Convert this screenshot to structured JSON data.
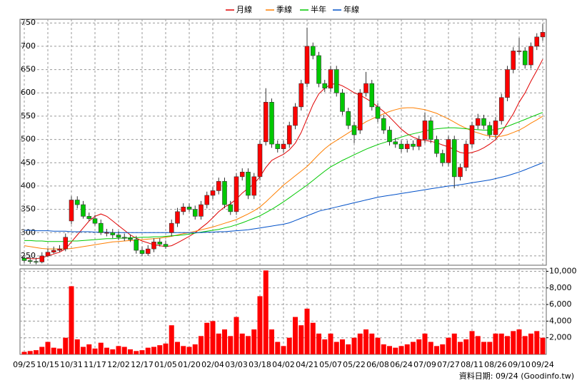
{
  "chart_data": {
    "type": "candlestick",
    "footer": "資料日期: 09/24 (Goodinfo.tw)",
    "grid": true,
    "categories": [
      "09/25",
      null,
      null,
      null,
      "10/15",
      null,
      null,
      null,
      "10/31",
      null,
      null,
      null,
      "11/17",
      null,
      null,
      null,
      "12/02",
      null,
      null,
      null,
      "12/17",
      null,
      null,
      null,
      "01/05",
      null,
      null,
      null,
      "01/20",
      null,
      null,
      null,
      "02/04",
      null,
      null,
      null,
      "03/03",
      null,
      null,
      null,
      "03/18",
      null,
      null,
      null,
      "04/02",
      null,
      null,
      null,
      "04/21",
      null,
      null,
      null,
      "05/07",
      null,
      null,
      null,
      "05/22",
      null,
      null,
      null,
      "06/08",
      null,
      null,
      null,
      "06/24",
      null,
      null,
      null,
      "07/09",
      null,
      null,
      null,
      "07/27",
      null,
      null,
      null,
      "08/11",
      null,
      null,
      null,
      "08/26",
      null,
      null,
      null,
      "09/10",
      null,
      null,
      null,
      "09/24"
    ],
    "open": [
      245,
      240,
      238,
      237,
      250,
      258,
      262,
      265,
      325,
      370,
      360,
      335,
      330,
      320,
      300,
      300,
      295,
      290,
      288,
      285,
      262,
      255,
      265,
      280,
      275,
      300,
      320,
      345,
      355,
      350,
      335,
      360,
      380,
      390,
      410,
      360,
      345,
      420,
      430,
      380,
      420,
      495,
      580,
      490,
      480,
      490,
      530,
      570,
      620,
      700,
      680,
      620,
      610,
      650,
      600,
      560,
      530,
      520,
      600,
      620,
      570,
      545,
      520,
      495,
      490,
      480,
      490,
      485,
      500,
      540,
      500,
      470,
      450,
      500,
      420,
      440,
      490,
      530,
      545,
      530,
      510,
      540,
      590,
      650,
      690,
      690,
      660,
      700,
      720
    ],
    "high": [
      253,
      248,
      246,
      258,
      266,
      270,
      273,
      298,
      378,
      378,
      368,
      343,
      338,
      328,
      308,
      308,
      303,
      298,
      296,
      293,
      270,
      273,
      288,
      288,
      283,
      328,
      353,
      363,
      363,
      358,
      368,
      388,
      398,
      418,
      418,
      368,
      428,
      438,
      438,
      428,
      498,
      610,
      588,
      498,
      498,
      538,
      578,
      628,
      740,
      708,
      688,
      628,
      658,
      658,
      608,
      568,
      538,
      608,
      645,
      628,
      578,
      553,
      528,
      503,
      498,
      498,
      498,
      508,
      558,
      548,
      508,
      478,
      508,
      508,
      448,
      498,
      538,
      555,
      553,
      538,
      548,
      598,
      658,
      698,
      718,
      698,
      708,
      728,
      748
    ],
    "low": [
      235,
      233,
      232,
      234,
      247,
      255,
      258,
      260,
      318,
      352,
      330,
      325,
      315,
      295,
      292,
      288,
      284,
      282,
      280,
      255,
      250,
      250,
      258,
      270,
      265,
      292,
      312,
      338,
      345,
      328,
      328,
      352,
      372,
      382,
      352,
      338,
      338,
      412,
      372,
      372,
      412,
      487,
      482,
      472,
      472,
      482,
      522,
      562,
      612,
      672,
      612,
      602,
      602,
      592,
      552,
      522,
      492,
      512,
      592,
      562,
      537,
      512,
      487,
      482,
      472,
      472,
      477,
      477,
      492,
      492,
      462,
      442,
      442,
      395,
      412,
      432,
      482,
      522,
      522,
      502,
      502,
      532,
      582,
      642,
      682,
      652,
      652,
      692,
      712
    ],
    "close": [
      240,
      238,
      237,
      250,
      258,
      262,
      265,
      290,
      370,
      360,
      335,
      330,
      320,
      300,
      300,
      295,
      290,
      288,
      285,
      262,
      255,
      265,
      280,
      275,
      270,
      320,
      345,
      355,
      350,
      335,
      360,
      380,
      390,
      410,
      360,
      345,
      420,
      430,
      380,
      420,
      490,
      580,
      490,
      480,
      490,
      530,
      570,
      620,
      700,
      680,
      620,
      610,
      650,
      600,
      560,
      530,
      510,
      600,
      620,
      570,
      545,
      520,
      495,
      490,
      480,
      490,
      485,
      500,
      540,
      500,
      470,
      450,
      500,
      420,
      440,
      490,
      530,
      545,
      530,
      510,
      540,
      590,
      650,
      690,
      690,
      660,
      700,
      720,
      730
    ],
    "up_color": "#ff0000",
    "down_color": "#00c800",
    "ylim": [
      230,
      758
    ],
    "yticks": [
      250,
      300,
      350,
      400,
      450,
      500,
      550,
      600,
      650,
      700,
      750
    ],
    "series": [
      {
        "name": "月線",
        "color": "#e00000",
        "values": [
          245,
          244,
          244,
          246,
          250,
          254,
          258,
          265,
          280,
          295,
          310,
          325,
          335,
          340,
          335,
          325,
          315,
          305,
          295,
          288,
          282,
          278,
          274,
          272,
          270,
          272,
          278,
          285,
          292,
          300,
          310,
          320,
          332,
          345,
          355,
          362,
          372,
          385,
          395,
          405,
          420,
          440,
          455,
          462,
          468,
          478,
          492,
          515,
          545,
          575,
          598,
          610,
          618,
          620,
          615,
          608,
          600,
          595,
          588,
          580,
          570,
          560,
          548,
          535,
          522,
          512,
          505,
          500,
          498,
          496,
          493,
          488,
          484,
          478,
          472,
          470,
          472,
          476,
          482,
          490,
          500,
          515,
          535,
          555,
          580,
          600,
          625,
          648,
          672
        ]
      },
      {
        "name": "季線",
        "color": "#ff7f00",
        "values": [
          272,
          270,
          268,
          266,
          265,
          265,
          265,
          265,
          266,
          268,
          270,
          272,
          274,
          276,
          278,
          280,
          281,
          282,
          283,
          284,
          285,
          286,
          287,
          288,
          290,
          292,
          295,
          298,
          300,
          303,
          306,
          309,
          312,
          316,
          320,
          324,
          328,
          334,
          340,
          347,
          355,
          366,
          378,
          390,
          402,
          412,
          422,
          432,
          442,
          455,
          468,
          480,
          490,
          498,
          506,
          514,
          522,
          530,
          538,
          544,
          550,
          555,
          560,
          564,
          567,
          568,
          568,
          566,
          564,
          560,
          556,
          550,
          544,
          537,
          530,
          524,
          518,
          514,
          510,
          507,
          506,
          507,
          510,
          515,
          520,
          527,
          535,
          542,
          550
        ]
      },
      {
        "name": "半年",
        "color": "#00c800",
        "values": [
          283,
          283,
          282,
          282,
          281,
          281,
          281,
          281,
          282,
          282,
          283,
          284,
          285,
          286,
          287,
          287,
          288,
          288,
          289,
          289,
          290,
          290,
          291,
          291,
          292,
          293,
          294,
          295,
          297,
          299,
          301,
          303,
          305,
          307,
          310,
          313,
          317,
          321,
          326,
          331,
          336,
          343,
          350,
          358,
          366,
          375,
          384,
          393,
          402,
          412,
          422,
          432,
          441,
          448,
          455,
          461,
          467,
          473,
          479,
          484,
          489,
          493,
          497,
          501,
          505,
          509,
          512,
          515,
          518,
          521,
          523,
          524,
          525,
          525,
          524,
          523,
          522,
          521,
          520,
          520,
          521,
          524,
          528,
          533,
          538,
          543,
          548,
          553,
          558
        ]
      },
      {
        "name": "年線",
        "color": "#0050c8",
        "values": [
          305,
          305,
          304,
          304,
          304,
          303,
          303,
          303,
          302,
          302,
          302,
          302,
          301,
          301,
          301,
          300,
          300,
          300,
          300,
          300,
          300,
          300,
          300,
          300,
          300,
          300,
          300,
          300,
          300,
          300,
          300,
          301,
          301,
          302,
          302,
          303,
          304,
          305,
          306,
          308,
          310,
          312,
          314,
          316,
          318,
          321,
          326,
          331,
          336,
          341,
          346,
          349,
          352,
          355,
          358,
          361,
          364,
          367,
          370,
          373,
          376,
          378,
          380,
          382,
          384,
          386,
          388,
          390,
          392,
          394,
          396,
          398,
          400,
          401,
          403,
          405,
          407,
          409,
          411,
          413,
          416,
          419,
          422,
          426,
          430,
          435,
          440,
          445,
          450
        ]
      }
    ],
    "volume": {
      "color": "#ff0000",
      "values": [
        300,
        400,
        500,
        900,
        1500,
        800,
        700,
        2000,
        8200,
        1800,
        900,
        1200,
        700,
        1400,
        800,
        600,
        1000,
        900,
        600,
        400,
        500,
        800,
        900,
        1100,
        1300,
        3500,
        1500,
        1000,
        900,
        1200,
        2200,
        3800,
        4000,
        2500,
        3000,
        2200,
        4500,
        2500,
        2200,
        3000,
        7000,
        10100,
        3000,
        1500,
        1000,
        2000,
        4500,
        3500,
        5500,
        3800,
        2500,
        1800,
        2500,
        1500,
        1800,
        1200,
        2000,
        2500,
        3000,
        2500,
        2000,
        1200,
        1000,
        800,
        1000,
        1200,
        1500,
        1800,
        2500,
        1500,
        1000,
        1200,
        2000,
        2500,
        1500,
        1800,
        2800,
        2200,
        1500,
        1500,
        2500,
        2500,
        2200,
        2800,
        3000,
        2200,
        2500,
        2800,
        2000
      ]
    },
    "y2lim": [
      0,
      10300
    ],
    "y2ticks": [
      {
        "value": 2000,
        "label": "2,000"
      },
      {
        "value": 4000,
        "label": "4,000"
      },
      {
        "value": 6000,
        "label": "6,000"
      },
      {
        "value": 8000,
        "label": "8,000"
      },
      {
        "value": 10000,
        "label": "10,000"
      }
    ]
  }
}
